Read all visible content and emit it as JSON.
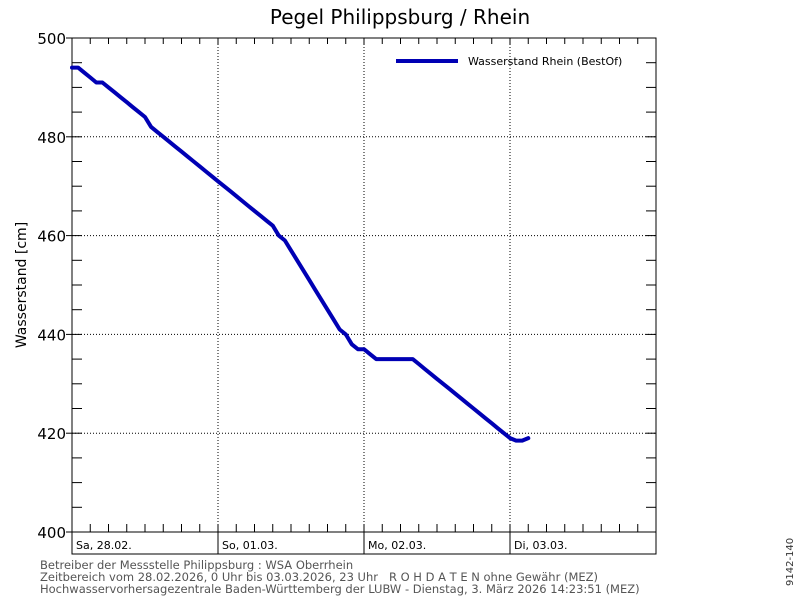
{
  "footer": {
    "line1": "Betreiber der Messstelle Philippsburg : WSA Oberrhein",
    "line2": "Zeitbereich vom 28.02.2026, 0 Uhr bis 03.03.2026, 23 Uhr   R O H D A T E N ohne Gewähr (MEZ)",
    "line3": "Hochwasservorhersagezentrale Baden-Württemberg der LUBW - Dienstag, 3. März 2026 14:23:51 (MEZ)"
  },
  "side_id": "9142-140",
  "chart_data": {
    "type": "line",
    "title": "Pegel Philippsburg / Rhein",
    "ylabel": "Wasserstand [cm]",
    "xlabel": "",
    "ylim": [
      400,
      500
    ],
    "xlim_hours": [
      0,
      96
    ],
    "yticks": [
      400,
      420,
      440,
      460,
      480,
      500
    ],
    "day_labels": [
      "Sa, 28.02.",
      "So, 01.03.",
      "Mo, 02.03.",
      "Di, 03.03."
    ],
    "grid": true,
    "legend_position": "top-right",
    "series": [
      {
        "name": "Wasserstand Rhein (BestOf)",
        "color": "#0000b4",
        "points": [
          [
            0,
            494
          ],
          [
            1,
            494
          ],
          [
            2,
            493
          ],
          [
            3,
            492
          ],
          [
            4,
            491
          ],
          [
            5,
            491
          ],
          [
            6,
            490
          ],
          [
            7,
            489
          ],
          [
            8,
            488
          ],
          [
            9,
            487
          ],
          [
            10,
            486
          ],
          [
            11,
            485
          ],
          [
            12,
            484
          ],
          [
            13,
            482
          ],
          [
            14,
            481
          ],
          [
            15,
            480
          ],
          [
            16,
            479
          ],
          [
            17,
            478
          ],
          [
            18,
            477
          ],
          [
            19,
            476
          ],
          [
            20,
            475
          ],
          [
            21,
            474
          ],
          [
            22,
            473
          ],
          [
            23,
            472
          ],
          [
            24,
            471
          ],
          [
            25,
            470
          ],
          [
            26,
            469
          ],
          [
            27,
            468
          ],
          [
            28,
            467
          ],
          [
            29,
            466
          ],
          [
            30,
            465
          ],
          [
            31,
            464
          ],
          [
            32,
            463
          ],
          [
            33,
            462
          ],
          [
            34,
            460
          ],
          [
            35,
            459
          ],
          [
            36,
            457
          ],
          [
            37,
            455
          ],
          [
            38,
            453
          ],
          [
            39,
            451
          ],
          [
            40,
            449
          ],
          [
            41,
            447
          ],
          [
            42,
            445
          ],
          [
            43,
            443
          ],
          [
            44,
            441
          ],
          [
            45,
            440
          ],
          [
            46,
            438
          ],
          [
            47,
            437
          ],
          [
            48,
            437
          ],
          [
            49,
            436
          ],
          [
            50,
            435
          ],
          [
            51,
            435
          ],
          [
            52,
            435
          ],
          [
            53,
            435
          ],
          [
            54,
            435
          ],
          [
            55,
            435
          ],
          [
            56,
            435
          ],
          [
            57,
            434
          ],
          [
            58,
            433
          ],
          [
            59,
            432
          ],
          [
            60,
            431
          ],
          [
            61,
            430
          ],
          [
            62,
            429
          ],
          [
            63,
            428
          ],
          [
            64,
            427
          ],
          [
            65,
            426
          ],
          [
            66,
            425
          ],
          [
            67,
            424
          ],
          [
            68,
            423
          ],
          [
            69,
            422
          ],
          [
            70,
            421
          ],
          [
            71,
            420
          ],
          [
            72,
            419
          ],
          [
            73,
            418.5
          ],
          [
            74,
            418.5
          ],
          [
            75,
            419
          ]
        ]
      }
    ]
  }
}
